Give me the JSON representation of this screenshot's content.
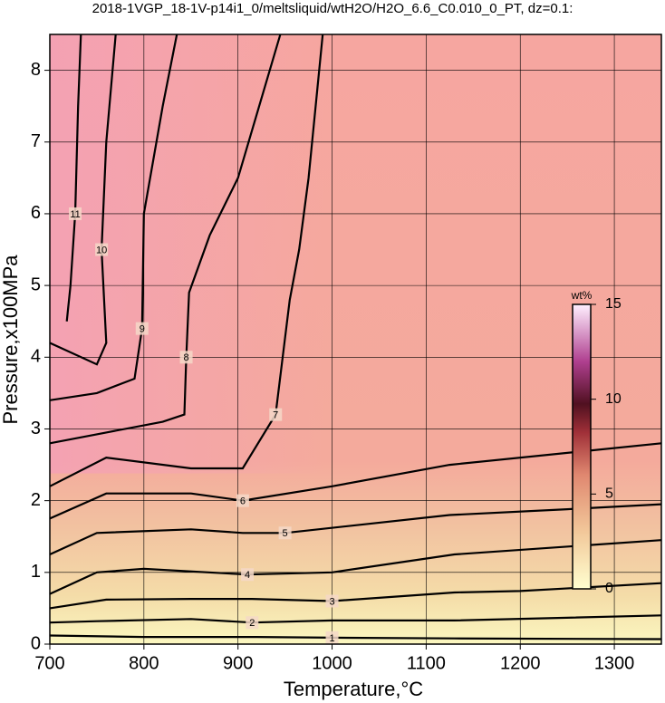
{
  "chart_data": {
    "type": "contour",
    "title": "2018-1VGP_18-1V-p14i1_0/meltsliquid/wtH2O/H2O_6.6_C0.010_0_PT, dz=0.1:",
    "x_label": "Temperature,°C",
    "y_label": "Pressure,x100MPa",
    "xlim": [
      700,
      1350
    ],
    "ylim": [
      0,
      8.5
    ],
    "xticks": [
      700,
      800,
      900,
      1000,
      1100,
      1200,
      1300
    ],
    "yticks": [
      0,
      1,
      2,
      3,
      4,
      5,
      6,
      7,
      8
    ],
    "grid": true,
    "contours": [
      {
        "level": 1,
        "x": [
          700,
          800,
          920,
          1000,
          1130,
          1350
        ],
        "y": [
          0.12,
          0.1,
          0.1,
          0.09,
          0.08,
          0.07
        ]
      },
      {
        "level": 2,
        "x": [
          700,
          750,
          850,
          915,
          1000,
          1130,
          1350
        ],
        "y": [
          0.3,
          0.32,
          0.35,
          0.3,
          0.33,
          0.33,
          0.4
        ]
      },
      {
        "level": 3,
        "x": [
          700,
          760,
          850,
          915,
          1000,
          1130,
          1200,
          1350
        ],
        "y": [
          0.5,
          0.62,
          0.63,
          0.63,
          0.6,
          0.72,
          0.74,
          0.85
        ]
      },
      {
        "level": 4,
        "x": [
          700,
          750,
          800,
          910,
          1000,
          1130,
          1350
        ],
        "y": [
          0.7,
          1.0,
          1.05,
          0.97,
          1.0,
          1.25,
          1.45
        ]
      },
      {
        "level": 5,
        "x": [
          700,
          750,
          850,
          905,
          950,
          1125,
          1250,
          1350
        ],
        "y": [
          1.25,
          1.55,
          1.6,
          1.55,
          1.55,
          1.8,
          1.88,
          1.95
        ]
      },
      {
        "level": 6,
        "x": [
          700,
          760,
          850,
          905,
          1000,
          1125,
          1350
        ],
        "y": [
          1.75,
          2.1,
          2.1,
          2.0,
          2.2,
          2.5,
          2.8
        ]
      },
      {
        "level": 7,
        "x": [
          700,
          760,
          850,
          905,
          940,
          955,
          965,
          975,
          990
        ],
        "y": [
          2.2,
          2.6,
          2.45,
          2.45,
          3.2,
          4.8,
          5.5,
          6.5,
          8.5
        ]
      },
      {
        "level": 8,
        "x": [
          700,
          760,
          820,
          843,
          845,
          848,
          870,
          900,
          945
        ],
        "y": [
          2.8,
          2.95,
          3.1,
          3.2,
          4.0,
          4.9,
          5.7,
          6.5,
          8.5
        ]
      },
      {
        "level": 9,
        "x": [
          700,
          750,
          790,
          798,
          800,
          820,
          835
        ],
        "y": [
          3.4,
          3.5,
          3.7,
          4.4,
          6.0,
          7.5,
          8.5
        ]
      },
      {
        "level": 10,
        "x": [
          700,
          750,
          760,
          755,
          760,
          770
        ],
        "y": [
          4.2,
          3.9,
          4.2,
          5.5,
          7.0,
          8.5
        ]
      },
      {
        "level": 11,
        "x": [
          718,
          722,
          727,
          730,
          733
        ],
        "y": [
          4.5,
          5.0,
          6.0,
          7.5,
          8.5
        ]
      }
    ],
    "colorbar": {
      "label": "wt%",
      "range": [
        0,
        15
      ],
      "ticks": [
        0,
        5,
        10,
        15
      ]
    }
  }
}
